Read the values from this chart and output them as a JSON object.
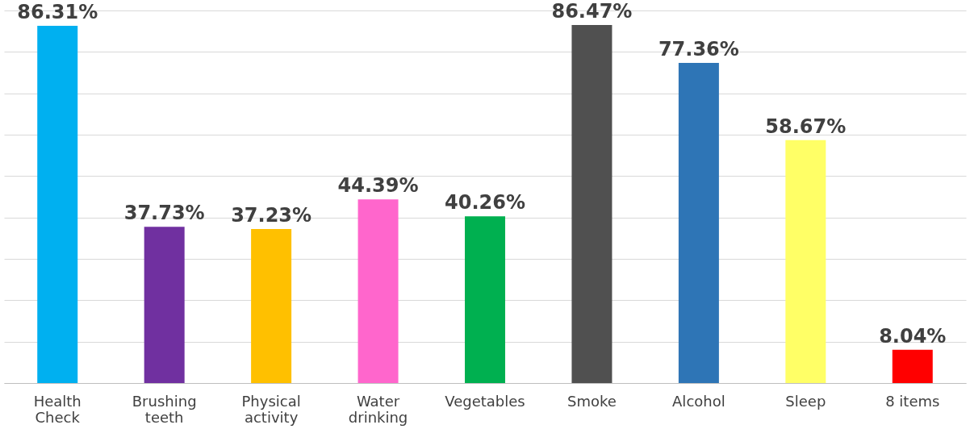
{
  "chart_data": {
    "type": "bar",
    "categories": [
      "Health\nCheck",
      "Brushing\nteeth",
      "Physical\nactivity",
      "Water\ndrinking",
      "Vegetables",
      "Smoke",
      "Alcohol",
      "Sleep",
      "8 items"
    ],
    "values": [
      86.31,
      37.73,
      37.23,
      44.39,
      40.26,
      86.47,
      77.36,
      58.67,
      8.04
    ],
    "colors": [
      "#00b0f0",
      "#7030a0",
      "#ffc000",
      "#ff66cc",
      "#00b050",
      "#505050",
      "#2e75b6",
      "#ffff66",
      "#ff0000"
    ],
    "value_labels": [
      "86.31%",
      "37.73%",
      "37.23%",
      "44.39%",
      "40.26%",
      "86.47%",
      "77.36%",
      "58.67%",
      "8.04%"
    ],
    "grid": "y",
    "tick_labels": "x"
  }
}
